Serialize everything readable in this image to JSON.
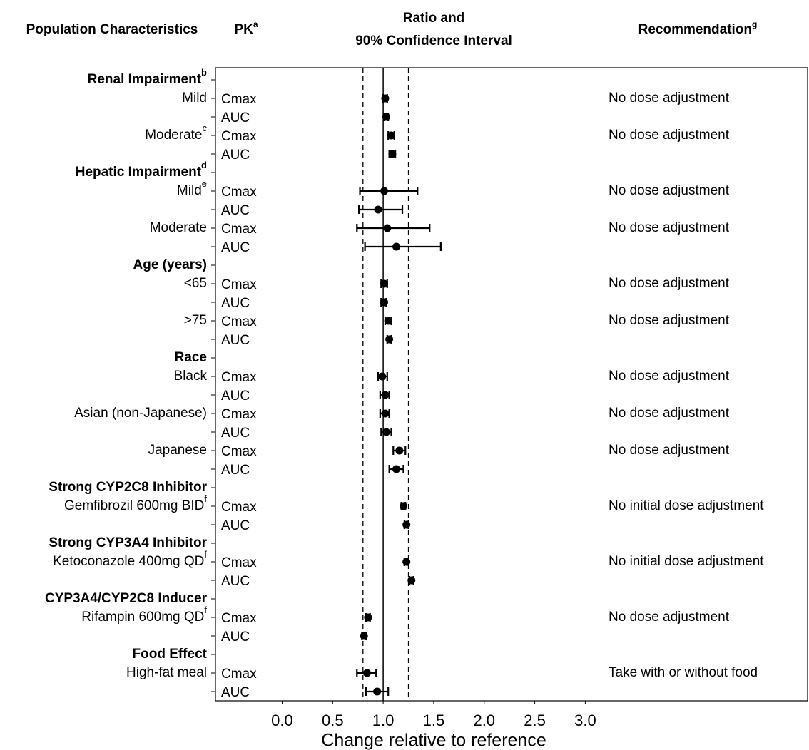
{
  "chart_data": {
    "type": "forest",
    "headers": {
      "population": "Population Characteristics",
      "pk": "PK",
      "pk_sup": "a",
      "ratio_lines": [
        "Ratio and",
        "90% Confidence Interval"
      ],
      "recommendation": "Recommendation",
      "recommendation_sup": "g"
    },
    "xlabel": "Change relative to reference",
    "xlim": [
      -0.66,
      5.2
    ],
    "xticks": [
      {
        "value": 0,
        "label": "0.0"
      },
      0.5,
      {
        "value": 1,
        "label": "1.0"
      },
      1.5,
      {
        "value": 2,
        "label": "2.0"
      },
      2.5,
      {
        "value": 3,
        "label": "3.0"
      }
    ],
    "reference_line": 1,
    "bounds": [
      0.8,
      1.25
    ],
    "rows": [
      {
        "label": "Renal Impairment",
        "sup": "b",
        "header": true
      },
      {
        "label": "Mild",
        "pk": "Cmax",
        "value": 1.02,
        "ci": [
          1.0,
          1.04
        ],
        "recommendation": "No dose adjustment"
      },
      {
        "pk": "AUC",
        "value": 1.03,
        "ci": [
          1.01,
          1.05
        ]
      },
      {
        "label": "Moderate",
        "sup": "c",
        "pk": "Cmax",
        "value": 1.08,
        "ci": [
          1.05,
          1.11
        ],
        "recommendation": "No dose adjustment"
      },
      {
        "pk": "AUC",
        "value": 1.09,
        "ci": [
          1.06,
          1.12
        ]
      },
      {
        "label": "Hepatic Impairment",
        "sup": "d",
        "header": true
      },
      {
        "label": "Mild",
        "sup": "e",
        "pk": "Cmax",
        "value": 1.01,
        "ci": [
          0.77,
          1.34
        ],
        "recommendation": "No dose adjustment"
      },
      {
        "pk": "AUC",
        "value": 0.95,
        "ci": [
          0.76,
          1.19
        ]
      },
      {
        "label": "Moderate",
        "pk": "Cmax",
        "value": 1.04,
        "ci": [
          0.74,
          1.46
        ],
        "recommendation": "No dose adjustment"
      },
      {
        "pk": "AUC",
        "value": 1.13,
        "ci": [
          0.82,
          1.57
        ]
      },
      {
        "label": "Age (years)",
        "header": true
      },
      {
        "label": "<65",
        "pk": "Cmax",
        "value": 1.01,
        "ci": [
          0.98,
          1.04
        ],
        "recommendation": "No dose adjustment"
      },
      {
        "pk": "AUC",
        "value": 1.01,
        "ci": [
          0.98,
          1.03
        ]
      },
      {
        "label": ">75",
        "pk": "Cmax",
        "value": 1.05,
        "ci": [
          1.02,
          1.08
        ],
        "recommendation": "No dose adjustment"
      },
      {
        "pk": "AUC",
        "value": 1.06,
        "ci": [
          1.04,
          1.08
        ]
      },
      {
        "label": "Race",
        "header": true
      },
      {
        "label": "Black",
        "pk": "Cmax",
        "value": 0.99,
        "ci": [
          0.95,
          1.04
        ],
        "recommendation": "No dose adjustment"
      },
      {
        "pk": "AUC",
        "value": 1.02,
        "ci": [
          0.97,
          1.06
        ]
      },
      {
        "label": "Asian (non-Japanese)",
        "pk": "Cmax",
        "value": 1.02,
        "ci": [
          0.97,
          1.06
        ],
        "recommendation": "No dose adjustment"
      },
      {
        "pk": "AUC",
        "value": 1.03,
        "ci": [
          0.98,
          1.08
        ]
      },
      {
        "label": "Japanese",
        "pk": "Cmax",
        "value": 1.16,
        "ci": [
          1.1,
          1.22
        ],
        "recommendation": "No dose adjustment"
      },
      {
        "pk": "AUC",
        "value": 1.13,
        "ci": [
          1.06,
          1.2
        ]
      },
      {
        "label": "Strong CYP2C8 Inhibitor",
        "header": true
      },
      {
        "label": "Gemfibrozil 600mg BID",
        "sup": "f",
        "pk": "Cmax",
        "value": 1.2,
        "ci": [
          1.18,
          1.22
        ],
        "recommendation": "No initial dose adjustment"
      },
      {
        "pk": "AUC",
        "value": 1.23,
        "ci": [
          1.21,
          1.25
        ]
      },
      {
        "label": "Strong CYP3A4 Inhibitor",
        "header": true
      },
      {
        "label": "Ketoconazole 400mg QD",
        "sup": "f",
        "pk": "Cmax",
        "value": 1.23,
        "ci": [
          1.21,
          1.25
        ],
        "recommendation": "No initial dose adjustment"
      },
      {
        "pk": "AUC",
        "value": 1.28,
        "ci": [
          1.26,
          1.3
        ]
      },
      {
        "label": "CYP3A4/CYP2C8 Inducer",
        "header": true
      },
      {
        "label": "Rifampin 600mg QD",
        "sup": "f",
        "pk": "Cmax",
        "value": 0.85,
        "ci": [
          0.83,
          0.87
        ],
        "recommendation": "No dose adjustment"
      },
      {
        "pk": "AUC",
        "value": 0.81,
        "ci": [
          0.79,
          0.83
        ]
      },
      {
        "label": "Food Effect",
        "header": true
      },
      {
        "label": "High-fat meal",
        "pk": "Cmax",
        "value": 0.84,
        "ci": [
          0.74,
          0.93
        ],
        "recommendation": "Take with or without food"
      },
      {
        "pk": "AUC",
        "value": 0.94,
        "ci": [
          0.83,
          1.05
        ]
      }
    ]
  }
}
